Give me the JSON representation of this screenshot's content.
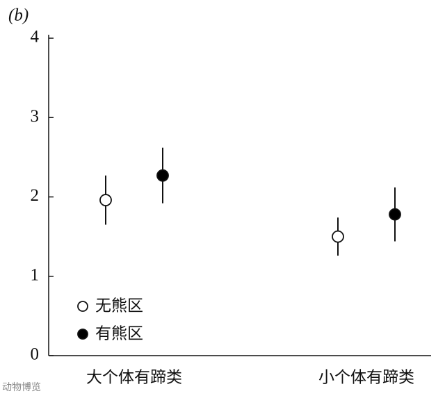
{
  "chart_data": {
    "type": "errorbar",
    "panel_label": "(b)",
    "watermark": "动物博览",
    "categories": [
      "大个体有蹄类",
      "小个体有蹄类"
    ],
    "series": [
      {
        "name": "无熊区",
        "color": "#ffffff",
        "values": [
          1.96,
          1.5
        ],
        "errors": [
          0.31,
          0.24
        ]
      },
      {
        "name": "有熊区",
        "color": "#000000",
        "values": [
          2.27,
          1.78
        ],
        "errors": [
          0.35,
          0.34
        ]
      }
    ],
    "ylim": [
      0,
      4
    ],
    "yticks": [
      0,
      1,
      2,
      3,
      4
    ],
    "legend": "lower left"
  }
}
